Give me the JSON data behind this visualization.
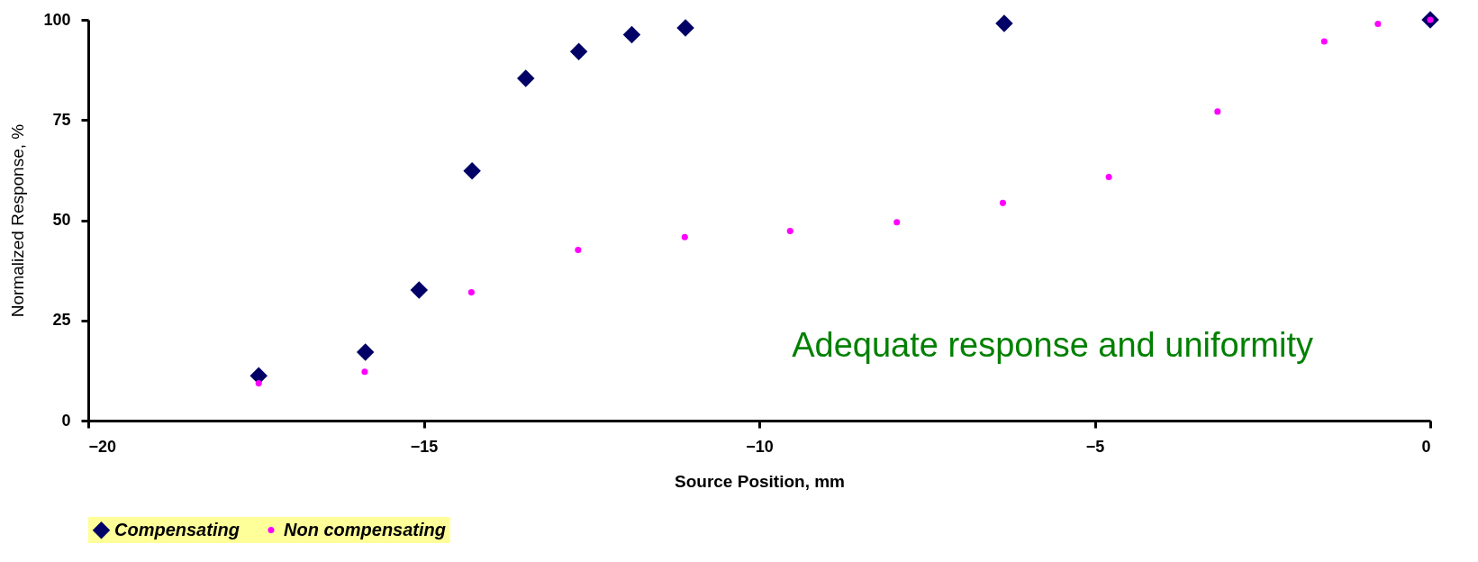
{
  "chart_data": {
    "type": "scatter",
    "xlabel": "Source Position, mm",
    "ylabel": "Normalized Response, %",
    "xlim": [
      -20,
      0
    ],
    "xticks": [
      -20,
      -15,
      -10,
      -5,
      0
    ],
    "ylim": [
      0,
      100
    ],
    "yticks": [
      0,
      25,
      50,
      75,
      100
    ],
    "grid": false,
    "legend": "bottom",
    "annotations": [
      "Adequate response and uniformity"
    ],
    "series": [
      {
        "name": "Compensating",
        "color": "#000066",
        "marker": "diamond",
        "x": [
          -17.46,
          -15.87,
          -15.07,
          -14.28,
          -13.48,
          -12.69,
          -11.9,
          -11.1,
          -6.35,
          0
        ],
        "values": [
          11.2,
          17.1,
          32.6,
          62.3,
          85.4,
          92.1,
          96.3,
          98.0,
          99.1,
          100
        ]
      },
      {
        "name": "Non compensating",
        "color": "#ff00ff",
        "marker": "circle",
        "x": [
          -17.46,
          -15.88,
          -14.29,
          -12.7,
          -11.11,
          -9.54,
          -7.95,
          -6.37,
          -4.79,
          -3.17,
          -1.58,
          -0.78,
          0
        ],
        "values": [
          9.3,
          12.2,
          32.0,
          42.6,
          45.8,
          47.3,
          49.5,
          54.3,
          60.8,
          77.1,
          94.6,
          99.0,
          100
        ]
      }
    ]
  }
}
